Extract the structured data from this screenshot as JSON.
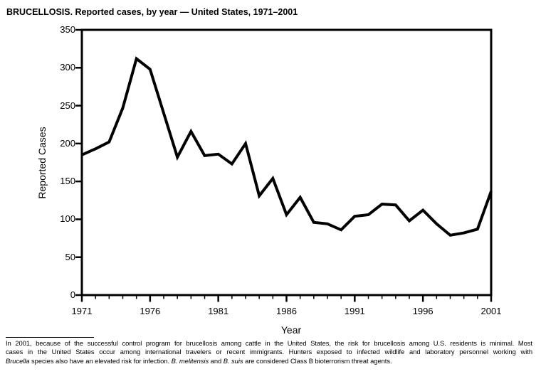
{
  "title": "BRUCELLOSIS. Reported cases, by year — United States, 1971–2001",
  "chart_data": {
    "type": "line",
    "title": "BRUCELLOSIS. Reported cases, by year — United States, 1971–2001",
    "xlabel": "Year",
    "ylabel": "Reported Cases",
    "x": [
      1971,
      1972,
      1973,
      1974,
      1975,
      1976,
      1977,
      1978,
      1979,
      1980,
      1981,
      1982,
      1983,
      1984,
      1985,
      1986,
      1987,
      1988,
      1989,
      1990,
      1991,
      1992,
      1993,
      1994,
      1995,
      1996,
      1997,
      1998,
      1999,
      2000,
      2001
    ],
    "values": [
      185,
      193,
      202,
      247,
      312,
      298,
      240,
      182,
      216,
      184,
      186,
      173,
      200,
      131,
      154,
      106,
      129,
      96,
      94,
      86,
      104,
      106,
      120,
      119,
      98,
      112,
      94,
      79,
      82,
      87,
      137
    ],
    "xlim": [
      1971,
      2001
    ],
    "ylim": [
      0,
      350
    ],
    "yticks": [
      0,
      50,
      100,
      150,
      200,
      250,
      300,
      350
    ],
    "xticks_major": [
      1971,
      1976,
      1981,
      1986,
      1991,
      1996,
      2001
    ],
    "xtick_minor_interval": 1,
    "grid": false,
    "legend": false,
    "line_color": "#000000",
    "line_width": 4,
    "axis_color": "#000000",
    "background_color": "#ffffff"
  },
  "footnote": {
    "lines": [
      {
        "segments": [
          {
            "italic": false,
            "text": "In 2001, because of the successful control program for brucellosis among cattle in the United States, the risk for brucellosis among U.S. residents is minimal. Most"
          }
        ]
      },
      {
        "segments": [
          {
            "italic": false,
            "text": "cases in the United States occur among international travelers or recent immigrants. Hunters exposed to infected wildlife and laboratory personnel working with"
          }
        ]
      },
      {
        "segments": [
          {
            "italic": true,
            "text": "Brucella"
          },
          {
            "italic": false,
            "text": " species also have an elevated risk for infection. "
          },
          {
            "italic": true,
            "text": "B. melitensis"
          },
          {
            "italic": false,
            "text": " and "
          },
          {
            "italic": true,
            "text": "B. suis"
          },
          {
            "italic": false,
            "text": " are considered Class B bioterrorism threat agents."
          }
        ]
      }
    ]
  }
}
